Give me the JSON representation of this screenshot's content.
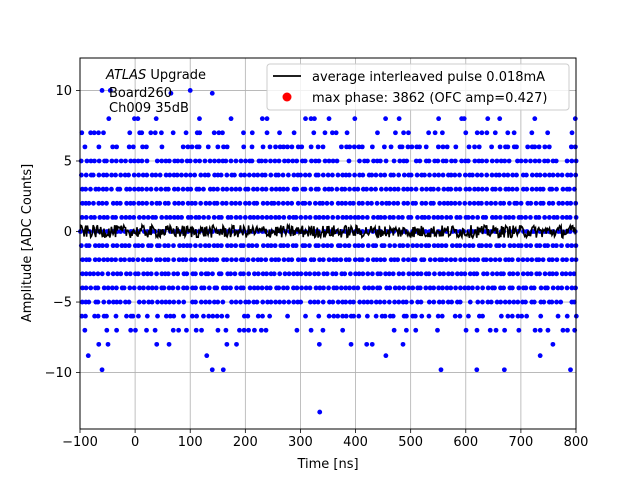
{
  "chart_data": {
    "type": "scatter",
    "title": "",
    "xlabel": "Time [ns]",
    "ylabel": "Amplitude [ADC Counts]",
    "xlim": [
      -100,
      800
    ],
    "ylim": [
      -14,
      12.3
    ],
    "xticks": [
      -100,
      0,
      100,
      200,
      300,
      400,
      500,
      600,
      700,
      800
    ],
    "yticks": [
      -10,
      -5,
      0,
      5,
      10
    ],
    "xtick_labels": [
      "−100",
      "0",
      "100",
      "200",
      "300",
      "400",
      "500",
      "600",
      "700",
      "800"
    ],
    "ytick_labels": [
      "−10",
      "−5",
      "0",
      "5",
      "10"
    ],
    "grid": true,
    "legend_position": "top-right",
    "annotation": {
      "atlas": "ATLAS",
      "upgrade": " Upgrade",
      "line2": "Board260",
      "line3": "Ch009 35dB"
    },
    "series": [
      {
        "name": "average interleaved pulse 0.018mA",
        "kind": "line",
        "color": "#000000",
        "x": [
          -100,
          800
        ],
        "y": [
          0,
          0
        ]
      },
      {
        "name": "max phase: 3862 (OFC amp=0.427)",
        "kind": "scatter",
        "color": "#0000ff",
        "x_step": 8,
        "level_density": [
          [
            8,
            0.25
          ],
          [
            7,
            0.4
          ],
          [
            6,
            0.65
          ],
          [
            5,
            0.95
          ],
          [
            4,
            1.0
          ],
          [
            3,
            1.0
          ],
          [
            2,
            1.0
          ],
          [
            1,
            1.0
          ],
          [
            0,
            1.0
          ],
          [
            -1,
            1.0
          ],
          [
            -2,
            1.0
          ],
          [
            -3,
            1.0
          ],
          [
            -4,
            1.0
          ],
          [
            -5,
            0.9
          ],
          [
            -6,
            0.6
          ],
          [
            -7,
            0.35
          ],
          [
            -8,
            0.12
          ]
        ],
        "outliers": [
          {
            "x": -85,
            "y": -8.8
          },
          {
            "x": -60,
            "y": -9.8
          },
          {
            "x": 130,
            "y": -8.8
          },
          {
            "x": 140,
            "y": -9.8
          },
          {
            "x": 160,
            "y": -9.8
          },
          {
            "x": 335,
            "y": -12.8
          },
          {
            "x": 455,
            "y": -8.8
          },
          {
            "x": 555,
            "y": -9.8
          },
          {
            "x": 620,
            "y": -9.8
          },
          {
            "x": 670,
            "y": -9.8
          },
          {
            "x": 735,
            "y": -8.8
          },
          {
            "x": 790,
            "y": -9.8
          },
          {
            "x": -60,
            "y": 10.0
          },
          {
            "x": -45,
            "y": 10.0
          },
          {
            "x": 65,
            "y": 9.8
          },
          {
            "x": 100,
            "y": 10.0
          },
          {
            "x": 140,
            "y": 9.8
          }
        ]
      },
      {
        "name": "max phase marker",
        "kind": "legend-only",
        "color": "#ff0000"
      }
    ]
  }
}
